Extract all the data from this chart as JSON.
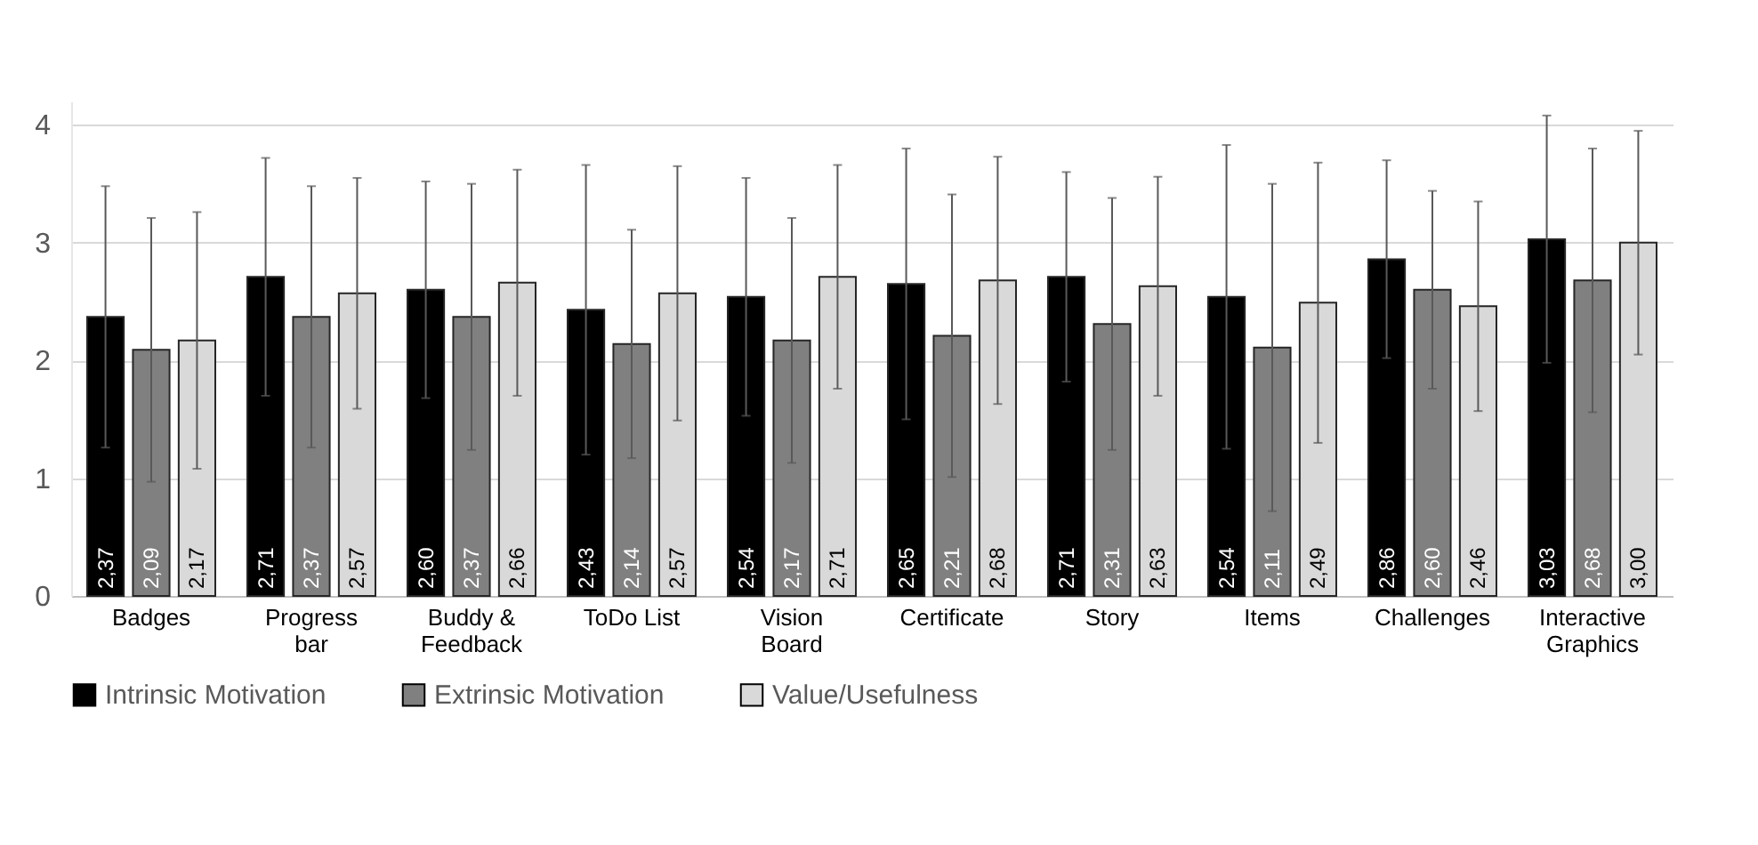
{
  "chart_data": {
    "type": "bar",
    "categories": [
      "Badges",
      "Progress bar",
      "Buddy & Feedback",
      "ToDo List",
      "Vision Board",
      "Certificate",
      "Story",
      "Items",
      "Challenges",
      "Interactive Graphics"
    ],
    "series": [
      {
        "name": "Intrinsic Motivation",
        "color": "#000000",
        "values": [
          2.37,
          2.71,
          2.6,
          2.43,
          2.54,
          2.65,
          2.71,
          2.54,
          2.86,
          3.03
        ],
        "value_labels": [
          "2,37",
          "2,71",
          "2,60",
          "2,43",
          "2,54",
          "2,65",
          "2,71",
          "2,54",
          "2,86",
          "3,03"
        ],
        "errors": [
          1.11,
          1.01,
          0.92,
          1.23,
          1.01,
          1.15,
          0.89,
          1.29,
          0.84,
          1.05
        ]
      },
      {
        "name": "Extrinsic Motivation",
        "color": "#808080",
        "values": [
          2.09,
          2.37,
          2.37,
          2.14,
          2.17,
          2.21,
          2.31,
          2.11,
          2.6,
          2.68
        ],
        "value_labels": [
          "2,09",
          "2,37",
          "2,37",
          "2,14",
          "2,17",
          "2,21",
          "2,31",
          "2,11",
          "2,60",
          "2,68"
        ],
        "errors": [
          1.12,
          1.11,
          1.13,
          0.97,
          1.04,
          1.2,
          1.07,
          1.39,
          0.84,
          1.12
        ]
      },
      {
        "name": "Value/Usefulness",
        "color": "#d9d9d9",
        "values": [
          2.17,
          2.57,
          2.66,
          2.57,
          2.71,
          2.68,
          2.63,
          2.49,
          2.46,
          3.0
        ],
        "value_labels": [
          "2,17",
          "2,57",
          "2,66",
          "2,57",
          "2,71",
          "2,68",
          "2,63",
          "2,49",
          "2,46",
          "3,00"
        ],
        "errors": [
          1.09,
          0.98,
          0.96,
          1.08,
          0.95,
          1.05,
          0.93,
          1.19,
          0.89,
          0.95
        ]
      }
    ],
    "ylim": [
      0,
      4.2
    ],
    "yticks": [
      0,
      1,
      2,
      3,
      4
    ],
    "grid": "y",
    "legend": "bottom"
  }
}
